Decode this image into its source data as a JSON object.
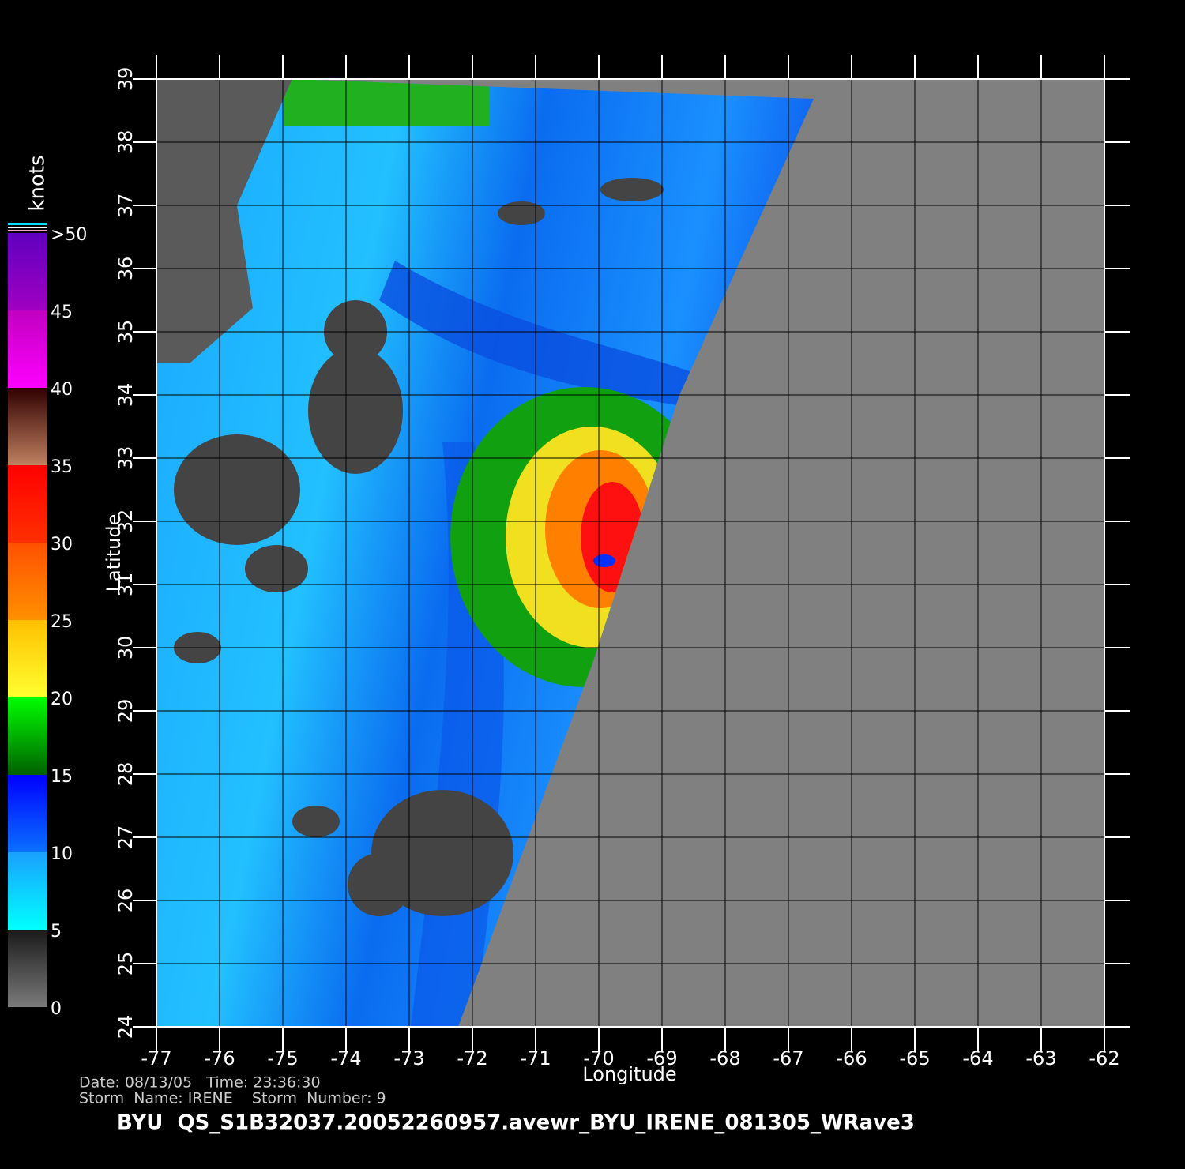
{
  "x_axis": {
    "label": "Longitude",
    "lim": [
      -77,
      -62
    ],
    "ticks": [
      -77,
      -76,
      -75,
      -74,
      -73,
      -72,
      -71,
      -70,
      -69,
      -68,
      -67,
      -66,
      -65,
      -64,
      -63,
      -62
    ]
  },
  "y_axis": {
    "label": "Latitude",
    "lim": [
      24,
      39
    ],
    "ticks": [
      24,
      25,
      26,
      27,
      28,
      29,
      30,
      31,
      32,
      33,
      34,
      35,
      36,
      37,
      38,
      39
    ]
  },
  "colorbar": {
    "title": "knots",
    "lim": [
      0,
      50
    ],
    "ticks": [
      0,
      5,
      10,
      15,
      20,
      25,
      30,
      35,
      40,
      45,
      {
        "value": 50,
        "label": ">50"
      }
    ]
  },
  "footer": {
    "date_line": "Date: 08/13/05   Time: 23:36:30",
    "storm_line": "Storm  Name: IRENE    Storm  Number: 9",
    "file_name": "BYU  QS_S1B32037.20052260957.avewr_BYU_IRENE_081305_WRave3"
  }
}
